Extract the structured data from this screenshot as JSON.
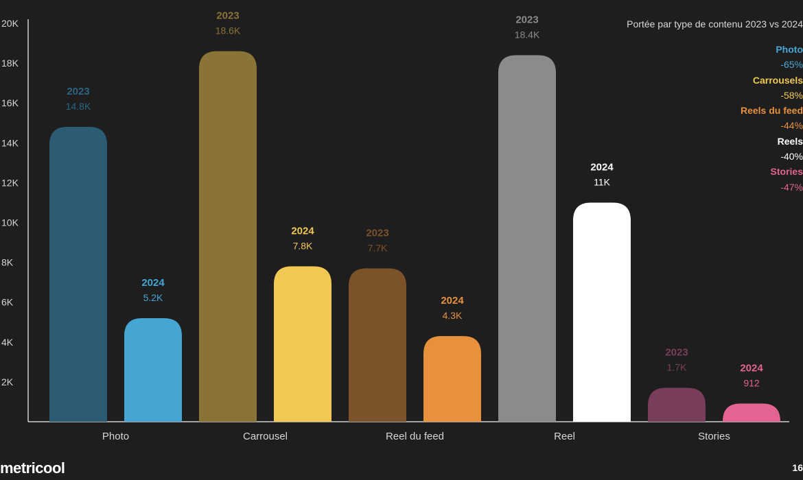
{
  "chart_data": {
    "type": "bar",
    "title": "Portée par type de contenu 2023 vs 2024",
    "categories": [
      "Photo",
      "Carrousel",
      "Reel du feed",
      "Reel",
      "Stories"
    ],
    "series": [
      {
        "name": "2023",
        "values": [
          14800,
          18600,
          7700,
          18400,
          1700
        ],
        "labels": [
          "14.8K",
          "18.6K",
          "7.7K",
          "18.4K",
          "1.7K"
        ],
        "colors": [
          "#2b5c74",
          "#8a7337",
          "#7b5229",
          "#8b8b8b",
          "#793e5b"
        ]
      },
      {
        "name": "2024",
        "values": [
          5200,
          7800,
          4300,
          11000,
          912
        ],
        "labels": [
          "5.2K",
          "7.8K",
          "4.3K",
          "11K",
          "912"
        ],
        "colors": [
          "#45a6d3",
          "#f0c853",
          "#e8913c",
          "#ffffff",
          "#e36493"
        ]
      }
    ],
    "label_colors": {
      "2023": [
        "#2c6580",
        "#8a7337",
        "#7b5229",
        "#8b8b8b",
        "#793e5b"
      ],
      "2024": [
        "#45a6d3",
        "#f0c853",
        "#e8913c",
        "#ffffff",
        "#e36493"
      ]
    },
    "yticks": [
      "2K",
      "4K",
      "6K",
      "8K",
      "10K",
      "12K",
      "14K",
      "16K",
      "18K",
      "20K"
    ],
    "ytick_values": [
      2000,
      4000,
      6000,
      8000,
      10000,
      12000,
      14000,
      16000,
      18000,
      20000
    ],
    "ylim": [
      0,
      20000
    ],
    "grid": false,
    "legend_position": "top-right",
    "legend": [
      {
        "name": "Photo",
        "change": "-65%",
        "color": "#45a6d3"
      },
      {
        "name": "Carrousels",
        "change": "-58%",
        "color": "#f0c853"
      },
      {
        "name": "Reels du feed",
        "change": "-44%",
        "color": "#e8913c"
      },
      {
        "name": "Reels",
        "change": "-40%",
        "color": "#ffffff"
      },
      {
        "name": "Stories",
        "change": "-47%",
        "color": "#e36493"
      }
    ]
  },
  "footer": {
    "brand": "metricool",
    "page_number": "16"
  }
}
